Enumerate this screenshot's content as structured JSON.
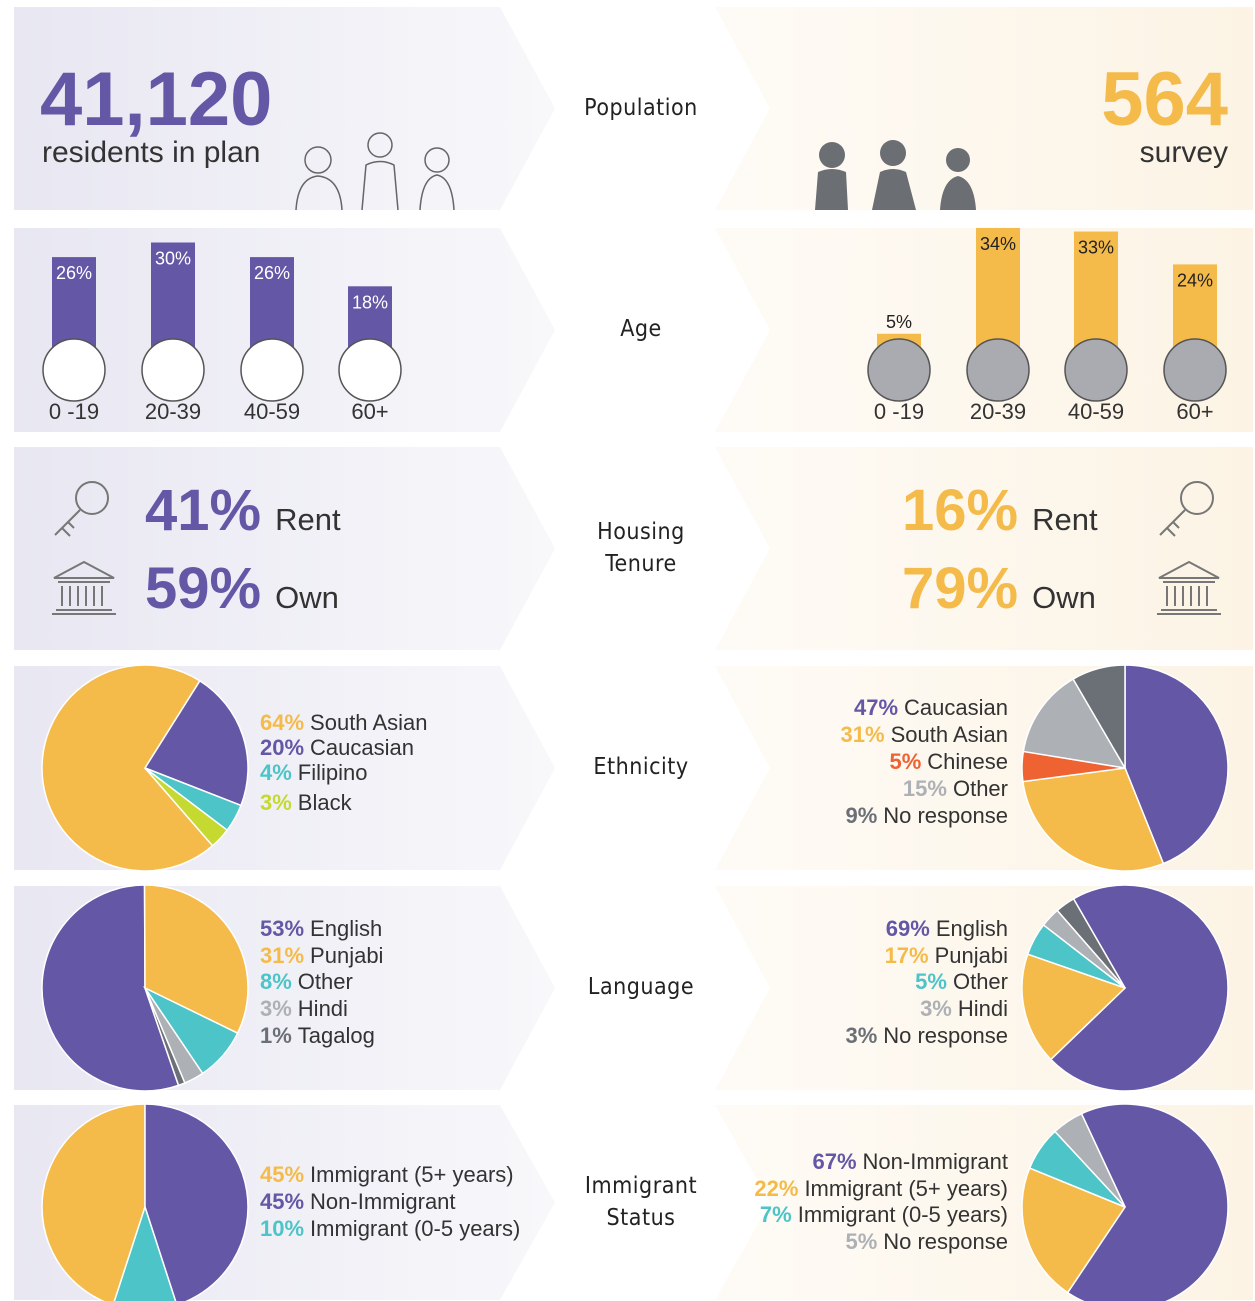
{
  "population": {
    "label": "Population",
    "left_value": "41,120",
    "left_caption": "residents in plan",
    "right_value": "564",
    "right_caption": "survey"
  },
  "age": {
    "label": "Age"
  },
  "housing": {
    "label": "Housing Tenure",
    "left": [
      {
        "pct": "41%",
        "name": "Rent"
      },
      {
        "pct": "59%",
        "name": "Own"
      }
    ],
    "right": [
      {
        "pct": "16%",
        "name": "Rent"
      },
      {
        "pct": "79%",
        "name": "Own"
      }
    ]
  },
  "ethnicity": {
    "label": "Ethnicity"
  },
  "language": {
    "label": "Language"
  },
  "immigrant": {
    "label": "Immigrant Status"
  },
  "chart_data": [
    {
      "type": "bar",
      "categories": [
        "0 -19",
        "20-39",
        "40-59",
        "60+"
      ],
      "values": [
        26,
        30,
        26,
        18
      ],
      "value_labels": [
        "26%",
        "30%",
        "26%",
        "18%"
      ],
      "color": "#6457a6"
    },
    {
      "type": "bar",
      "categories": [
        "0 -19",
        "20-39",
        "40-59",
        "60+"
      ],
      "values": [
        5,
        34,
        33,
        24
      ],
      "value_labels": [
        "5%",
        "34%",
        "33%",
        "24%"
      ],
      "color": "#f5bb4a"
    },
    {
      "type": "pie",
      "categories": [
        "South Asian",
        "Caucasian",
        "Filipino",
        "Black"
      ],
      "values": [
        64,
        20,
        4,
        3
      ],
      "value_labels": [
        "64%",
        "20%",
        "4%",
        "3%"
      ],
      "colors": [
        "#f5bb4a",
        "#6457a6",
        "#4cc4c8",
        "#c5d930"
      ]
    },
    {
      "type": "pie",
      "categories": [
        "Caucasian",
        "South Asian",
        "Chinese",
        "Other",
        "No response"
      ],
      "values": [
        47,
        31,
        5,
        15,
        9
      ],
      "value_labels": [
        "47%",
        "31%",
        "5%",
        "15%",
        "9%"
      ],
      "colors": [
        "#6457a6",
        "#f5bb4a",
        "#ef6231",
        "#adb0b5",
        "#6b7077"
      ]
    },
    {
      "type": "pie",
      "categories": [
        "English",
        "Punjabi",
        "Other",
        "Hindi",
        "Tagalog"
      ],
      "values": [
        53,
        31,
        8,
        3,
        1
      ],
      "value_labels": [
        "53%",
        "31%",
        "8%",
        "3%",
        "1%"
      ],
      "colors": [
        "#6457a6",
        "#f5bb4a",
        "#4cc4c8",
        "#adb0b5",
        "#6b7077"
      ]
    },
    {
      "type": "pie",
      "categories": [
        "English",
        "Punjabi",
        "Other",
        "Hindi",
        "No response"
      ],
      "values": [
        69,
        17,
        5,
        3,
        3
      ],
      "value_labels": [
        "69%",
        "17%",
        "5%",
        "3%",
        "3%"
      ],
      "colors": [
        "#6457a6",
        "#f5bb4a",
        "#4cc4c8",
        "#adb0b5",
        "#6b7077"
      ]
    },
    {
      "type": "pie",
      "categories": [
        "Immigrant (5+ years)",
        "Non-Immigrant",
        "Immigrant (0-5 years)"
      ],
      "values": [
        45,
        45,
        10
      ],
      "value_labels": [
        "45%",
        "45%",
        "10%"
      ],
      "colors": [
        "#f5bb4a",
        "#6457a6",
        "#4cc4c8"
      ]
    },
    {
      "type": "pie",
      "categories": [
        "Non-Immigrant",
        "Immigrant (5+ years)",
        "Immigrant (0-5 years)",
        "No response"
      ],
      "values": [
        67,
        22,
        7,
        5
      ],
      "value_labels": [
        "67%",
        "22%",
        "7%",
        "5%"
      ],
      "colors": [
        "#6457a6",
        "#f5bb4a",
        "#4cc4c8",
        "#adb0b5"
      ]
    }
  ]
}
